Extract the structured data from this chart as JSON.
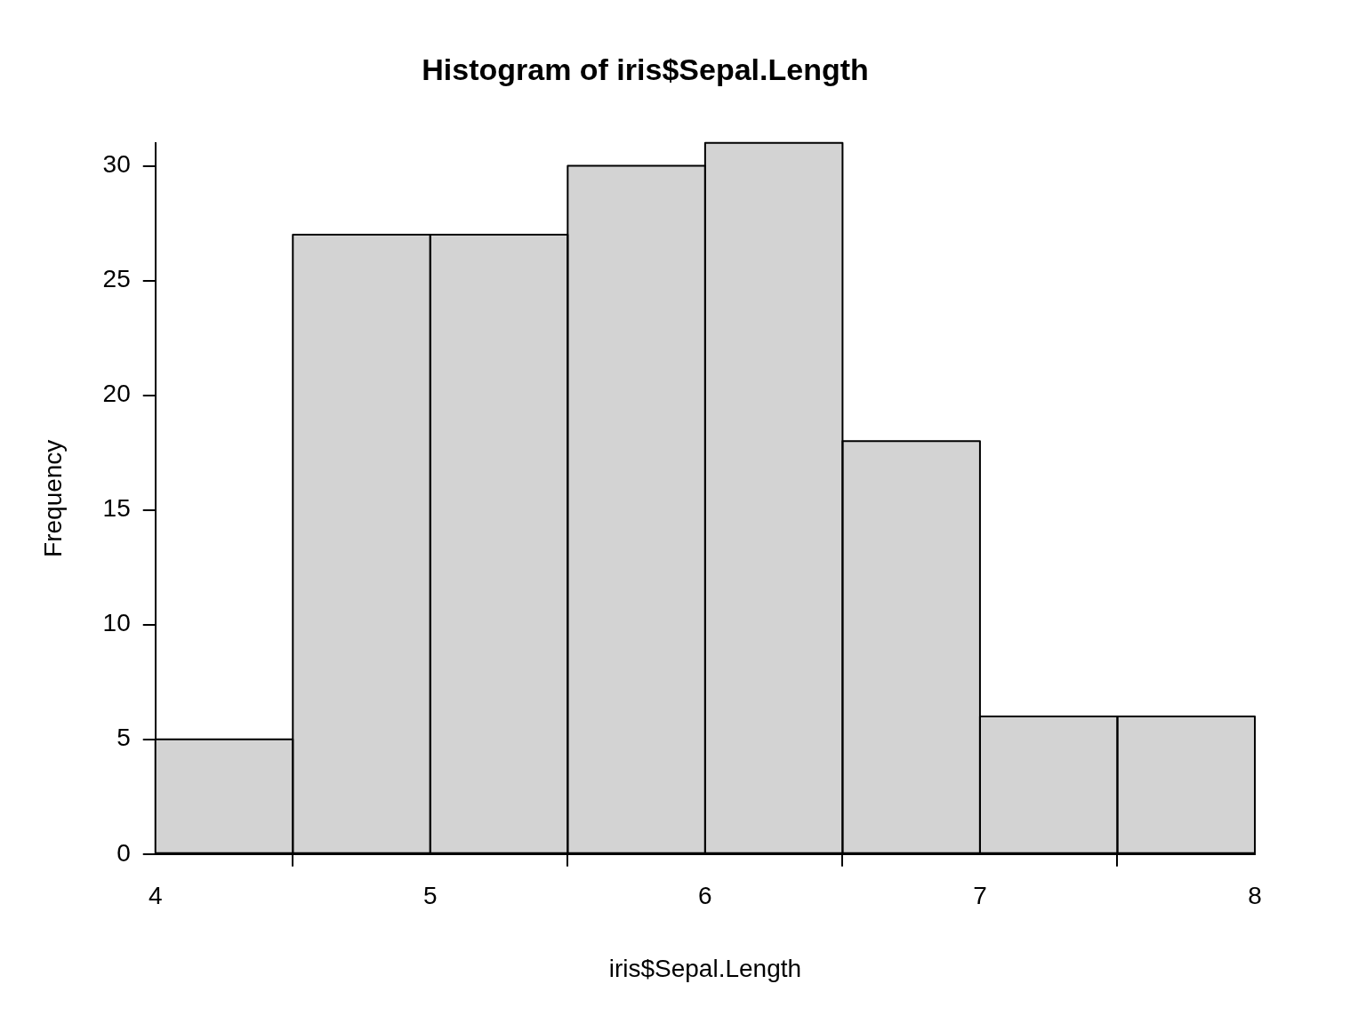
{
  "chart_data": {
    "type": "histogram",
    "title": "Histogram of iris$Sepal.Length",
    "xlabel": "iris$Sepal.Length",
    "ylabel": "Frequency",
    "bins": [
      4,
      4.5,
      5,
      5.5,
      6,
      6.5,
      7,
      7.5,
      8
    ],
    "values": [
      5,
      27,
      27,
      30,
      31,
      18,
      6,
      6
    ],
    "color": "#d3d3d3",
    "xlim": [
      4,
      8
    ],
    "xticks": [
      4,
      5,
      6,
      7,
      8
    ],
    "ylim": [
      0,
      31
    ],
    "yticks": [
      0,
      5,
      10,
      15,
      20,
      25,
      30
    ],
    "grid": false,
    "legend": false
  }
}
